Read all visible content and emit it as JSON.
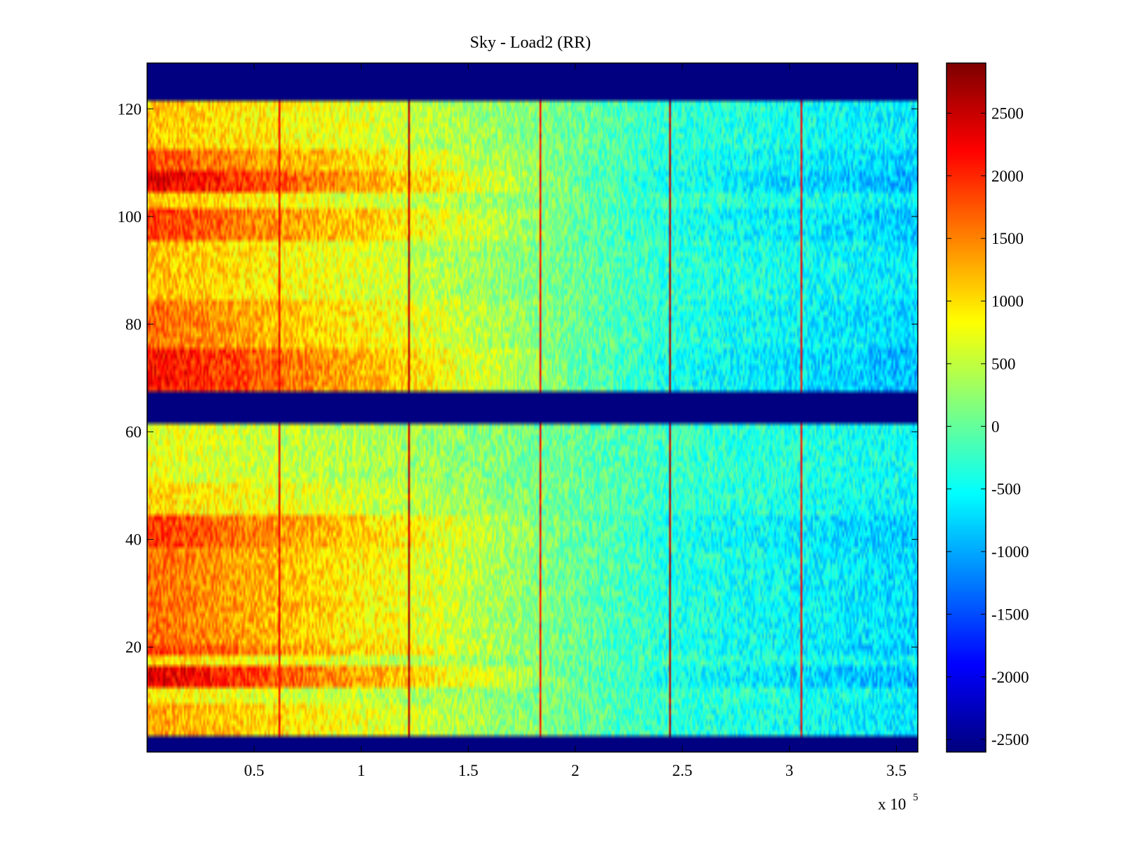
{
  "chart_data": {
    "type": "heatmap",
    "title": "Sky - Load2 (RR)",
    "xlabel": "",
    "ylabel": "",
    "x_multiplier": "x 10",
    "x_multiplier_exponent": "5",
    "xlim": [
      0,
      360000
    ],
    "ylim": [
      0.5,
      128.5
    ],
    "xticks": [
      50000,
      100000,
      150000,
      200000,
      250000,
      300000,
      350000
    ],
    "xtick_labels": [
      "0.5",
      "1",
      "1.5",
      "2",
      "2.5",
      "3",
      "3.5"
    ],
    "yticks": [
      20,
      40,
      60,
      80,
      100,
      120
    ],
    "ytick_labels": [
      "20",
      "40",
      "60",
      "80",
      "100",
      "120"
    ],
    "colormap": "jet",
    "clim": [
      -2600,
      2900
    ],
    "colorbar_ticks": [
      2500,
      2000,
      1500,
      1000,
      500,
      0,
      -500,
      -1000,
      -1500,
      -2000,
      -2500
    ],
    "colorbar_tick_labels": [
      "2500",
      "2000",
      "1500",
      "1000",
      "500",
      "0",
      "-500",
      "-1000",
      "-1500",
      "-2000",
      "-2500"
    ],
    "masked_value": -2600,
    "masked_row_ranges": [
      [
        1,
        3
      ],
      [
        62,
        67
      ],
      [
        122,
        128
      ]
    ],
    "trend_gradient": {
      "x": [
        0,
        120000,
        240000,
        360000
      ],
      "value": [
        1500,
        700,
        -300,
        -700
      ]
    },
    "spike_columns_x": [
      61000,
      122000,
      183000,
      244000,
      305000
    ],
    "row_strength": [
      {
        "rows": [
          4,
          9
        ],
        "value": 0.9
      },
      {
        "rows": [
          10,
          12
        ],
        "value": 0.6
      },
      {
        "rows": [
          13,
          16
        ],
        "value": 1.6
      },
      {
        "rows": [
          17,
          18
        ],
        "value": 0.7
      },
      {
        "rows": [
          19,
          20
        ],
        "value": 1.3
      },
      {
        "rows": [
          21,
          38
        ],
        "value": 1.1
      },
      {
        "rows": [
          39,
          44
        ],
        "value": 1.3
      },
      {
        "rows": [
          45,
          50
        ],
        "value": 0.7
      },
      {
        "rows": [
          51,
          61
        ],
        "value": 0.5
      },
      {
        "rows": [
          68,
          75
        ],
        "value": 1.5
      },
      {
        "rows": [
          76,
          84
        ],
        "value": 1.1
      },
      {
        "rows": [
          85,
          95
        ],
        "value": 0.8
      },
      {
        "rows": [
          96,
          101
        ],
        "value": 1.3
      },
      {
        "rows": [
          102,
          104
        ],
        "value": 0.8
      },
      {
        "rows": [
          105,
          108
        ],
        "value": 1.6
      },
      {
        "rows": [
          109,
          112
        ],
        "value": 1.2
      },
      {
        "rows": [
          113,
          121
        ],
        "value": 0.8
      }
    ]
  }
}
